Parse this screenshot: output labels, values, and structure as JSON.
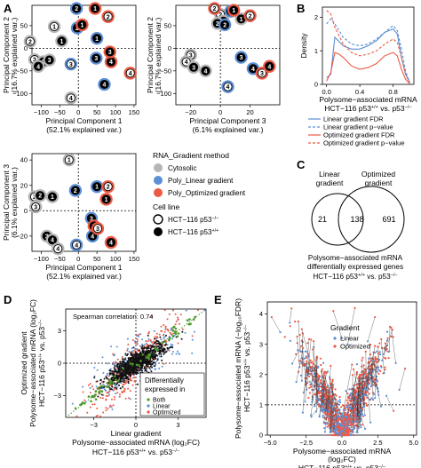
{
  "panel_letters": {
    "A": "A",
    "B": "B",
    "C": "C",
    "D": "D",
    "E": "E"
  },
  "colors": {
    "cytosolic": "#b5b5b5",
    "linear": "#5b8fd6",
    "optimized": "#ec5a45",
    "both": "#4c9a2a",
    "fdr_line": "#5b8fd6",
    "opt_line": "#ec5a45",
    "axis": "#000000",
    "grid_dash": "#000000"
  },
  "chart_data": [
    {
      "id": "A1",
      "type": "scatter",
      "xlabel": "Principal Component 1",
      "xlabel2": "(52.1% explained var.)",
      "ylabel": "Principal Component 2",
      "ylabel2": "(16.7% explained var.)",
      "xlim": [
        -125,
        155
      ],
      "ylim": [
        -125,
        95
      ],
      "xticks": [
        -100,
        -50,
        0,
        50,
        100,
        150
      ],
      "yticks": [
        -100,
        -50,
        0,
        50
      ],
      "points": [
        {
          "x": -65,
          "y": 48,
          "label": "1",
          "group": "cyto",
          "line": "ko"
        },
        {
          "x": -130,
          "y": 15,
          "label": "2",
          "group": "cyto",
          "line": "ko"
        },
        {
          "x": -118,
          "y": -25,
          "label": "3",
          "group": "cyto",
          "line": "ko"
        },
        {
          "x": -95,
          "y": -30,
          "label": "2",
          "group": "cyto",
          "line": "wt"
        },
        {
          "x": -78,
          "y": -26,
          "label": "3",
          "group": "cyto",
          "line": "wt"
        },
        {
          "x": -108,
          "y": -40,
          "label": "4",
          "group": "cyto",
          "line": "wt"
        },
        {
          "x": -45,
          "y": 16,
          "label": "1",
          "group": "cyto",
          "line": "wt"
        },
        {
          "x": -20,
          "y": -110,
          "label": "4",
          "group": "cyto",
          "line": "ko"
        },
        {
          "x": -5,
          "y": 88,
          "label": "2",
          "group": "linear",
          "line": "wt"
        },
        {
          "x": -3,
          "y": 45,
          "label": "2",
          "group": "linear",
          "line": "wt"
        },
        {
          "x": -20,
          "y": -35,
          "label": "3",
          "group": "linear",
          "line": "ko"
        },
        {
          "x": 50,
          "y": 22,
          "label": "1",
          "group": "linear",
          "line": "wt"
        },
        {
          "x": 48,
          "y": -22,
          "label": "3",
          "group": "linear",
          "line": "wt"
        },
        {
          "x": 70,
          "y": -80,
          "label": "4",
          "group": "linear",
          "line": "wt"
        },
        {
          "x": 45,
          "y": 88,
          "label": "1",
          "group": "optimized",
          "line": "wt"
        },
        {
          "x": 80,
          "y": 70,
          "label": "2",
          "group": "optimized",
          "line": "ko"
        },
        {
          "x": 10,
          "y": 52,
          "label": "1",
          "group": "optimized",
          "line": "wt"
        },
        {
          "x": 88,
          "y": -30,
          "label": "4",
          "group": "optimized",
          "line": "wt"
        },
        {
          "x": 85,
          "y": -8,
          "label": "3",
          "group": "optimized",
          "line": "wt"
        },
        {
          "x": 140,
          "y": -55,
          "label": "4",
          "group": "optimized",
          "line": "ko"
        }
      ]
    },
    {
      "id": "A2",
      "type": "scatter",
      "xlabel": "Principal Component 3",
      "xlabel2": "(6.1% explained var.)",
      "ylabel": "Principal Component 2",
      "ylabel2": "(16.7% explained var.)",
      "xlim": [
        -30,
        40
      ],
      "ylim": [
        -125,
        95
      ],
      "xticks": [
        -20,
        0,
        20
      ],
      "yticks": [
        -100,
        -50,
        0,
        50
      ],
      "points": [
        {
          "x": 0,
          "y": 75,
          "label": "2",
          "group": "cyto",
          "line": "ko"
        },
        {
          "x": 2,
          "y": 60,
          "label": "1",
          "group": "cyto",
          "line": "wt"
        },
        {
          "x": -2,
          "y": 55,
          "label": "2",
          "group": "cyto",
          "line": "wt"
        },
        {
          "x": 14,
          "y": 65,
          "label": "1",
          "group": "cyto",
          "line": "wt"
        },
        {
          "x": 7,
          "y": 82,
          "label": "1",
          "group": "linear",
          "line": "wt"
        },
        {
          "x": 3,
          "y": 52,
          "label": "2",
          "group": "linear",
          "line": "wt"
        },
        {
          "x": -4,
          "y": 88,
          "label": "2",
          "group": "optimized",
          "line": "ko"
        },
        {
          "x": 9,
          "y": 84,
          "label": "1",
          "group": "optimized",
          "line": "wt"
        },
        {
          "x": 20,
          "y": 72,
          "label": "2",
          "group": "optimized",
          "line": "ko"
        },
        {
          "x": -20,
          "y": -15,
          "label": "3",
          "group": "cyto",
          "line": "ko"
        },
        {
          "x": -23,
          "y": -30,
          "label": "4",
          "group": "cyto",
          "line": "ko"
        },
        {
          "x": -18,
          "y": -42,
          "label": "3",
          "group": "cyto",
          "line": "wt"
        },
        {
          "x": -10,
          "y": -50,
          "label": "4",
          "group": "cyto",
          "line": "wt"
        },
        {
          "x": 14,
          "y": -20,
          "label": "3",
          "group": "linear",
          "line": "wt"
        },
        {
          "x": 22,
          "y": -45,
          "label": "4",
          "group": "linear",
          "line": "wt"
        },
        {
          "x": 5,
          "y": -85,
          "label": "4",
          "group": "linear",
          "line": "ko"
        },
        {
          "x": 28,
          "y": -55,
          "label": "3",
          "group": "optimized",
          "line": "ko"
        },
        {
          "x": 33,
          "y": -40,
          "label": "4",
          "group": "optimized",
          "line": "wt"
        }
      ]
    },
    {
      "id": "A3",
      "type": "scatter",
      "xlabel": "Principal Component 1",
      "xlabel2": "(52.1% explained var.)",
      "ylabel": "Principal Component 3",
      "ylabel2": "(6.1% explained var.)",
      "xlim": [
        -125,
        155
      ],
      "ylim": [
        -32,
        45
      ],
      "xticks": [
        -100,
        -50,
        0,
        50,
        100,
        150
      ],
      "yticks": [
        -20,
        0,
        20,
        40
      ],
      "points": [
        {
          "x": -25,
          "y": 40,
          "label": "1",
          "group": "cyto",
          "line": "ko"
        },
        {
          "x": -118,
          "y": 11,
          "label": "2",
          "group": "cyto",
          "line": "ko"
        },
        {
          "x": -103,
          "y": 12,
          "label": "2",
          "group": "cyto",
          "line": "wt"
        },
        {
          "x": -115,
          "y": 3,
          "label": "3",
          "group": "cyto",
          "line": "ko"
        },
        {
          "x": -70,
          "y": 11,
          "label": "1",
          "group": "cyto",
          "line": "wt"
        },
        {
          "x": -85,
          "y": -20,
          "label": "3",
          "group": "cyto",
          "line": "wt"
        },
        {
          "x": -70,
          "y": -23,
          "label": "4",
          "group": "cyto",
          "line": "wt"
        },
        {
          "x": -55,
          "y": -30,
          "label": "4",
          "group": "cyto",
          "line": "ko"
        },
        {
          "x": -8,
          "y": 16,
          "label": "2",
          "group": "linear",
          "line": "wt"
        },
        {
          "x": 50,
          "y": 19,
          "label": "1",
          "group": "linear",
          "line": "wt"
        },
        {
          "x": 35,
          "y": -6,
          "label": "3",
          "group": "linear",
          "line": "wt"
        },
        {
          "x": -5,
          "y": -27,
          "label": "4",
          "group": "linear",
          "line": "ko"
        },
        {
          "x": 38,
          "y": -20,
          "label": "4",
          "group": "linear",
          "line": "wt"
        },
        {
          "x": 80,
          "y": 19,
          "label": "2",
          "group": "optimized",
          "line": "ko"
        },
        {
          "x": 75,
          "y": 9,
          "label": "1",
          "group": "optimized",
          "line": "wt"
        },
        {
          "x": 42,
          "y": -12,
          "label": "3",
          "group": "optimized",
          "line": "wt"
        },
        {
          "x": 52,
          "y": -14,
          "label": "3",
          "group": "optimized",
          "line": "ko"
        },
        {
          "x": 88,
          "y": -25,
          "label": "4",
          "group": "optimized",
          "line": "wt"
        }
      ]
    },
    {
      "id": "B",
      "type": "line",
      "xlabel": "Polysome−associated mRNA",
      "ylabel": "Density",
      "xlim": [
        -0.05,
        1.05
      ],
      "ylim": [
        0,
        2.3
      ],
      "xticks": [
        0,
        0.4,
        0.8
      ],
      "yticks": [
        0,
        1,
        2
      ],
      "series": [
        {
          "name": "Linear gradient FDR",
          "style": "solid",
          "color": "linear",
          "x": [
            0,
            0.05,
            0.1,
            0.2,
            0.3,
            0.4,
            0.5,
            0.6,
            0.7,
            0.8,
            0.85,
            0.9,
            0.95,
            1.0
          ],
          "y": [
            0.2,
            0.3,
            1.4,
            1.15,
            1.05,
            1.05,
            1.15,
            1.3,
            1.55,
            1.65,
            1.5,
            0.8,
            0.3,
            0.05
          ]
        },
        {
          "name": "Linear gradient p−value",
          "style": "dashed",
          "color": "linear",
          "x": [
            0,
            0.05,
            0.1,
            0.2,
            0.3,
            0.4,
            0.5,
            0.6,
            0.7,
            0.8,
            0.85,
            0.9,
            0.95,
            1.0
          ],
          "y": [
            1.8,
            1.95,
            1.8,
            1.4,
            1.2,
            1.15,
            1.2,
            1.35,
            1.55,
            1.75,
            1.6,
            1.05,
            0.4,
            0.05
          ]
        },
        {
          "name": "Optimized gradient FDR",
          "style": "solid",
          "color": "optimized",
          "x": [
            0,
            0.05,
            0.1,
            0.15,
            0.2,
            0.3,
            0.4,
            0.5,
            0.6,
            0.7,
            0.8,
            0.85,
            0.9,
            0.95,
            1.0
          ],
          "y": [
            0.1,
            0.35,
            0.95,
            0.9,
            0.8,
            0.55,
            0.45,
            0.5,
            0.62,
            0.85,
            0.95,
            0.85,
            0.45,
            0.15,
            0.02
          ]
        },
        {
          "name": "Optimized gradient p−value",
          "style": "dashed",
          "color": "optimized",
          "x": [
            0,
            0.05,
            0.1,
            0.2,
            0.3,
            0.4,
            0.5,
            0.6,
            0.7,
            0.8,
            0.85,
            0.9,
            0.95,
            1.0
          ],
          "y": [
            2.2,
            2.1,
            1.7,
            1.2,
            0.95,
            0.85,
            0.9,
            1.0,
            1.2,
            1.35,
            1.25,
            0.8,
            0.3,
            0.05
          ]
        }
      ]
    },
    {
      "id": "C",
      "type": "venn",
      "left_label": [
        "Linear",
        "gradient"
      ],
      "right_label": [
        "Optimized",
        "gradient"
      ],
      "left_only": 21,
      "both": 138,
      "right_only": 691,
      "caption": [
        "Polysome−associated mRNA",
        "differentially expressed genes"
      ]
    },
    {
      "id": "D",
      "type": "scatter",
      "annotation": "Spearman correlation: 0.74",
      "xlabel": "Linear gradient",
      "ylabel": [
        "Optimized gradient",
        "Polysome−associated mRNA (log₂FC)"
      ],
      "xlim": [
        -5,
        5
      ],
      "ylim": [
        -5,
        5
      ],
      "xticks": [
        -3,
        0,
        3
      ],
      "yticks": [
        -3,
        0,
        3
      ],
      "legend_title": [
        "Differentially",
        "expressed in"
      ],
      "legend": [
        {
          "name": "Both",
          "color": "both"
        },
        {
          "name": "Linear",
          "color": "linear"
        },
        {
          "name": "Optimized",
          "color": "optimized"
        }
      ],
      "reference_line": "y = x"
    },
    {
      "id": "E",
      "type": "volcano",
      "xlabel": "Polysome−associated mRNA",
      "xlabel2": "(log₂FC)",
      "ylabel": [
        "Polysome−associated mRNA (−log₁₀FDR)"
      ],
      "xlim": [
        -5.2,
        5.2
      ],
      "ylim": [
        0,
        4.4
      ],
      "xticks": [
        -5.0,
        -2.5,
        0.0,
        2.5,
        5.0
      ],
      "yticks": [
        0,
        1,
        2,
        3,
        4
      ],
      "threshold_y": 1,
      "legend_title": "Gradient",
      "legend": [
        {
          "name": "Linear",
          "color": "linear"
        },
        {
          "name": "Optimized",
          "color": "optimized"
        }
      ]
    }
  ],
  "legend_A": {
    "title": "RNA_Gradient method",
    "methods": [
      {
        "name": "Cytosolic",
        "color": "cytosolic"
      },
      {
        "name": "Poly_Linear gradient",
        "color": "linear"
      },
      {
        "name": "Poly_Optimized gradient",
        "color": "optimized"
      }
    ],
    "cell_title": "Cell line",
    "cells": [
      {
        "name": "HCT−116 p53",
        "sup": "−/−",
        "fill": "ko"
      },
      {
        "name": "HCT−116 p53",
        "sup": "+/+",
        "fill": "wt"
      }
    ]
  },
  "comparison": {
    "prefix": "HCT−116 p53",
    "sup1": "+/+",
    "mid": " vs. p53",
    "sup2": "−/−"
  }
}
